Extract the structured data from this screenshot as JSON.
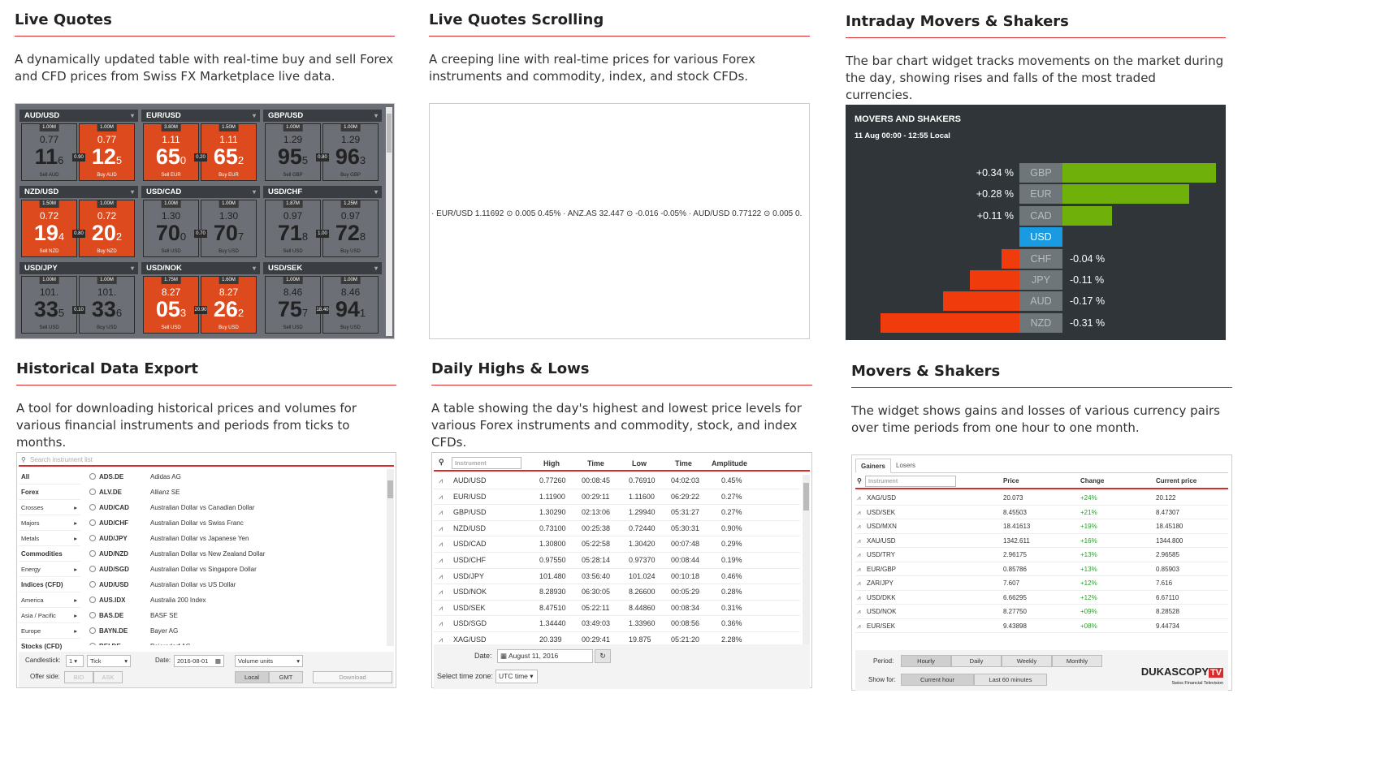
{
  "colors": {
    "accent": "#d92b2b",
    "yellow": "#e5c425",
    "red": "#dc4a1d",
    "green": "#a2d61a",
    "chart_up": "#6fb10a",
    "chart_down": "#f03c0c",
    "highlight": "#1a9ae0"
  },
  "live_quotes": {
    "title": "Live Quotes",
    "description": "A dynamically updated table with real-time buy and sell Forex and CFD prices from Swiss FX Marketplace live data.",
    "tiles": [
      {
        "pair": "AUD/USD",
        "color": "yellow",
        "spread": "0.90",
        "sell": {
          "vol": "1.00M",
          "pre": "0.77",
          "big": "11",
          "small": "6",
          "label": "Sell AUD"
        },
        "buy": {
          "vol": "1.00M",
          "pre": "0.77",
          "big": "12",
          "small": "5",
          "label": "Buy AUD",
          "color": "red"
        }
      },
      {
        "pair": "EUR/USD",
        "color": "red",
        "spread": "0.20",
        "sell": {
          "vol": "3.80M",
          "pre": "1.11",
          "big": "65",
          "small": "0",
          "label": "Sell EUR"
        },
        "buy": {
          "vol": "1.50M",
          "pre": "1.11",
          "big": "65",
          "small": "2",
          "label": "Buy EUR",
          "color": "red"
        }
      },
      {
        "pair": "GBP/USD",
        "color": "yellow",
        "spread": "0.80",
        "sell": {
          "vol": "1.00M",
          "pre": "1.29",
          "big": "95",
          "small": "5",
          "label": "Sell GBP"
        },
        "buy": {
          "vol": "1.00M",
          "pre": "1.29",
          "big": "96",
          "small": "3",
          "label": "Buy GBP",
          "color": "yellow"
        }
      },
      {
        "pair": "NZD/USD",
        "color": "red",
        "spread": "0.80",
        "sell": {
          "vol": "1.50M",
          "pre": "0.72",
          "big": "19",
          "small": "4",
          "label": "Sell NZD"
        },
        "buy": {
          "vol": "1.00M",
          "pre": "0.72",
          "big": "20",
          "small": "2",
          "label": "Buy NZD",
          "color": "red"
        }
      },
      {
        "pair": "USD/CAD",
        "color": "green",
        "spread": "0.70",
        "sell": {
          "vol": "1.00M",
          "pre": "1.30",
          "big": "70",
          "small": "0",
          "label": "Sell USD"
        },
        "buy": {
          "vol": "1.00M",
          "pre": "1.30",
          "big": "70",
          "small": "7",
          "label": "Buy USD",
          "color": "green"
        }
      },
      {
        "pair": "USD/CHF",
        "color": "green",
        "spread": "1.00",
        "sell": {
          "vol": "1.87M",
          "pre": "0.97",
          "big": "71",
          "small": "8",
          "label": "Sell USD"
        },
        "buy": {
          "vol": "1.25M",
          "pre": "0.97",
          "big": "72",
          "small": "8",
          "label": "Buy USD",
          "color": "green"
        }
      },
      {
        "pair": "USD/JPY",
        "color": "green",
        "spread": "0.10",
        "sell": {
          "vol": "1.00M",
          "pre": "101.",
          "big": "33",
          "small": "5",
          "label": "Sell USD"
        },
        "buy": {
          "vol": "1.00M",
          "pre": "101.",
          "big": "33",
          "small": "6",
          "label": "Buy USD",
          "color": "green"
        }
      },
      {
        "pair": "USD/NOK",
        "color": "red",
        "spread": "20.90",
        "sell": {
          "vol": "1.75M",
          "pre": "8.27",
          "big": "05",
          "small": "3",
          "label": "Sell USD"
        },
        "buy": {
          "vol": "1.60M",
          "pre": "8.27",
          "big": "26",
          "small": "2",
          "label": "Buy USD",
          "color": "red"
        }
      },
      {
        "pair": "USD/SEK",
        "color": "green",
        "spread": "18.40",
        "sell": {
          "vol": "1.00M",
          "pre": "8.46",
          "big": "75",
          "small": "7",
          "label": "Sell USD"
        },
        "buy": {
          "vol": "1.00M",
          "pre": "8.46",
          "big": "94",
          "small": "1",
          "label": "Buy USD",
          "color": "green"
        }
      }
    ]
  },
  "scrolling": {
    "title": "Live Quotes Scrolling",
    "description": "A creeping line with real-time prices for various Forex instruments and commodity, index, and stock CFDs.",
    "ticker": "· EUR/USD 1.11692 ⊙ 0.005 0.45% · ANZ.AS 32.447 ⊙ -0.016 -0.05% · AUD/USD 0.77122 ⊙ 0.005 0."
  },
  "intraday": {
    "title": "Intraday Movers & Shakers",
    "description": "The bar chart widget tracks movements on the market during the day, showing rises and falls of the most traded currencies.",
    "chart_title": "MOVERS AND SHAKERS",
    "chart_subtitle": "11 Aug 00:00 - 12:55 Local"
  },
  "chart_data": {
    "type": "bar",
    "title": "MOVERS AND SHAKERS",
    "subtitle": "11 Aug 00:00 - 12:55 Local",
    "categories": [
      "GBP",
      "EUR",
      "CAD",
      "USD",
      "CHF",
      "JPY",
      "AUD",
      "NZD"
    ],
    "values": [
      0.34,
      0.28,
      0.11,
      0,
      -0.04,
      -0.11,
      -0.17,
      -0.31
    ],
    "labels": [
      "+0.34 %",
      "+0.28 %",
      "+0.11 %",
      "",
      "-0.04 %",
      "-0.11 %",
      "-0.17 %",
      "-0.31 %"
    ],
    "highlight": "USD",
    "xlim": [
      -0.31,
      0.34
    ]
  },
  "historical": {
    "title": "Historical Data Export",
    "description": "A tool for downloading historical prices and volumes for various financial instruments and periods from ticks to months.",
    "search_placeholder": "Search instrument list",
    "categories": [
      {
        "label": "All",
        "bold": true,
        "arrow": false
      },
      {
        "label": "Forex",
        "bold": true,
        "arrow": false
      },
      {
        "label": "Crosses",
        "bold": false,
        "arrow": true
      },
      {
        "label": "Majors",
        "bold": false,
        "arrow": true
      },
      {
        "label": "Metals",
        "bold": false,
        "arrow": true
      },
      {
        "label": "Commodities",
        "bold": true,
        "arrow": false
      },
      {
        "label": "Energy",
        "bold": false,
        "arrow": true
      },
      {
        "label": "Indices (CFD)",
        "bold": true,
        "arrow": false
      },
      {
        "label": "America",
        "bold": false,
        "arrow": true
      },
      {
        "label": "Asia / Pacific",
        "bold": false,
        "arrow": true
      },
      {
        "label": "Europe",
        "bold": false,
        "arrow": true
      },
      {
        "label": "Stocks (CFD)",
        "bold": true,
        "arrow": false
      }
    ],
    "instruments": [
      {
        "sym": "ADS.DE",
        "name": "Adidas AG"
      },
      {
        "sym": "ALV.DE",
        "name": "Allianz SE"
      },
      {
        "sym": "AUD/CAD",
        "name": "Australian Dollar vs Canadian Dollar"
      },
      {
        "sym": "AUD/CHF",
        "name": "Australian Dollar vs Swiss Franc"
      },
      {
        "sym": "AUD/JPY",
        "name": "Australian Dollar vs Japanese Yen"
      },
      {
        "sym": "AUD/NZD",
        "name": "Australian Dollar vs New Zealand Dollar"
      },
      {
        "sym": "AUD/SGD",
        "name": "Australian Dollar vs Singapore Dollar"
      },
      {
        "sym": "AUD/USD",
        "name": "Australian Dollar vs US Dollar"
      },
      {
        "sym": "AUS.IDX",
        "name": "Australia 200 Index"
      },
      {
        "sym": "BAS.DE",
        "name": "BASF SE"
      },
      {
        "sym": "BAYN.DE",
        "name": "Bayer AG"
      },
      {
        "sym": "BEI.DE",
        "name": "Beiersdorf AG"
      }
    ],
    "candlestick_label": "Candlestick:",
    "candlestick_value": "1",
    "candlestick_unit": "Tick",
    "date_label": "Date:",
    "date_value": "2016-08-01",
    "volume_value": "Volume units",
    "offer_label": "Offer side:",
    "bid": "BID",
    "ask": "ASK",
    "local": "Local",
    "gmt": "GMT",
    "download": "Download"
  },
  "daily": {
    "title": "Daily Highs & Lows",
    "description": "A table showing the day's highest and lowest price levels for various Forex instruments and commodity, stock, and index CFDs.",
    "search_placeholder": "Instrument",
    "headers": [
      "High",
      "Time",
      "Low",
      "Time",
      "Amplitude"
    ],
    "rows": [
      [
        "AUD/USD",
        "0.77260",
        "00:08:45",
        "0.76910",
        "04:02:03",
        "0.45%"
      ],
      [
        "EUR/USD",
        "1.11900",
        "00:29:11",
        "1.11600",
        "06:29:22",
        "0.27%"
      ],
      [
        "GBP/USD",
        "1.30290",
        "02:13:06",
        "1.29940",
        "05:31:27",
        "0.27%"
      ],
      [
        "NZD/USD",
        "0.73100",
        "00:25:38",
        "0.72440",
        "05:30:31",
        "0.90%"
      ],
      [
        "USD/CAD",
        "1.30800",
        "05:22:58",
        "1.30420",
        "00:07:48",
        "0.29%"
      ],
      [
        "USD/CHF",
        "0.97550",
        "05:28:14",
        "0.97370",
        "00:08:44",
        "0.19%"
      ],
      [
        "USD/JPY",
        "101.480",
        "03:56:40",
        "101.024",
        "00:10:18",
        "0.46%"
      ],
      [
        "USD/NOK",
        "8.28930",
        "06:30:05",
        "8.26600",
        "00:05:29",
        "0.28%"
      ],
      [
        "USD/SEK",
        "8.47510",
        "05:22:11",
        "8.44860",
        "00:08:34",
        "0.31%"
      ],
      [
        "USD/SGD",
        "1.34440",
        "03:49:03",
        "1.33960",
        "00:08:56",
        "0.36%"
      ],
      [
        "XAG/USD",
        "20.339",
        "00:29:41",
        "19.875",
        "05:21:20",
        "2.28%"
      ]
    ],
    "date_label": "Date:",
    "date_value": "August 11, 2016",
    "tz_label": "Select time zone:",
    "tz_value": "UTC time"
  },
  "movers": {
    "title": "Movers & Shakers",
    "description": "The widget shows gains and losses of various currency pairs over time periods from one hour to one month.",
    "tabs": [
      "Gainers",
      "Losers"
    ],
    "search_placeholder": "Instrument",
    "headers": [
      "Price",
      "Change",
      "Current price"
    ],
    "rows": [
      [
        "XAG/USD",
        "20.073",
        "+24%",
        "20.122"
      ],
      [
        "USD/SEK",
        "8.45503",
        "+21%",
        "8.47307"
      ],
      [
        "USD/MXN",
        "18.41613",
        "+19%",
        "18.45180"
      ],
      [
        "XAU/USD",
        "1342.611",
        "+16%",
        "1344.800"
      ],
      [
        "USD/TRY",
        "2.96175",
        "+13%",
        "2.96585"
      ],
      [
        "EUR/GBP",
        "0.85786",
        "+13%",
        "0.85903"
      ],
      [
        "ZAR/JPY",
        "7.607",
        "+12%",
        "7.616"
      ],
      [
        "USD/DKK",
        "6.66295",
        "+12%",
        "6.67110"
      ],
      [
        "USD/NOK",
        "8.27750",
        "+09%",
        "8.28528"
      ],
      [
        "EUR/SEK",
        "9.43898",
        "+08%",
        "9.44734"
      ]
    ],
    "period_label": "Period:",
    "periods": [
      "Hourly",
      "Daily",
      "Weekly",
      "Monthly"
    ],
    "show_label": "Show for:",
    "show_options": [
      "Current hour",
      "Last 60 minutes"
    ],
    "logo": "DUKASCOPY",
    "logo_tv": "TV",
    "logo_sub": "Swiss Financial Television"
  }
}
